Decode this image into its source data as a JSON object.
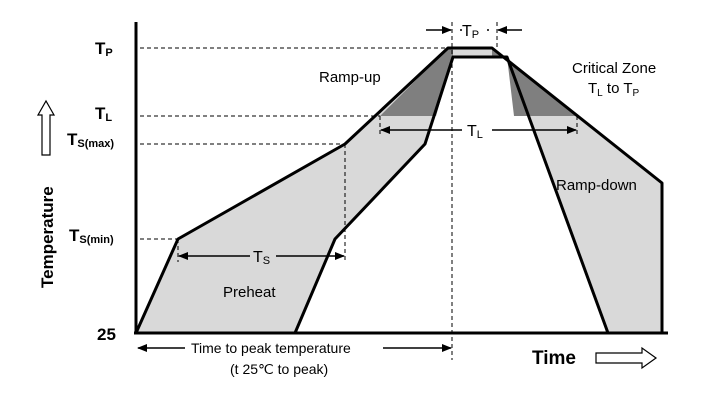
{
  "diagram": {
    "y_axis": {
      "label": "Temperature",
      "levels": {
        "tp": {
          "main": "T",
          "sub": "P"
        },
        "tl": {
          "main": "T",
          "sub": "L"
        },
        "ts_max": {
          "main": "T",
          "sub": "S(max)"
        },
        "ts_min": {
          "main": "T",
          "sub": "S(min)"
        },
        "base": "25"
      }
    },
    "x_axis": {
      "label": "Time"
    },
    "regions": {
      "ramp_up": "Ramp-up",
      "ramp_down": "Ramp-down",
      "preheat": "Preheat",
      "critical_zone_title": "Critical Zone",
      "critical_zone_range": {
        "t1": "T",
        "s1": "L",
        "to": " to ",
        "t2": "T",
        "s2": "P"
      }
    },
    "spans": {
      "tp": {
        "main": "T",
        "sub": "P"
      },
      "tl": {
        "main": "T",
        "sub": "L"
      },
      "ts": {
        "main": "T",
        "sub": "S"
      },
      "time_to_peak": "Time to peak temperature",
      "time_to_peak_note": "(t 25℃ to peak)"
    },
    "colors": {
      "band": "#d9d9d9",
      "critical": "#7f7f7f",
      "line": "#000000"
    }
  }
}
